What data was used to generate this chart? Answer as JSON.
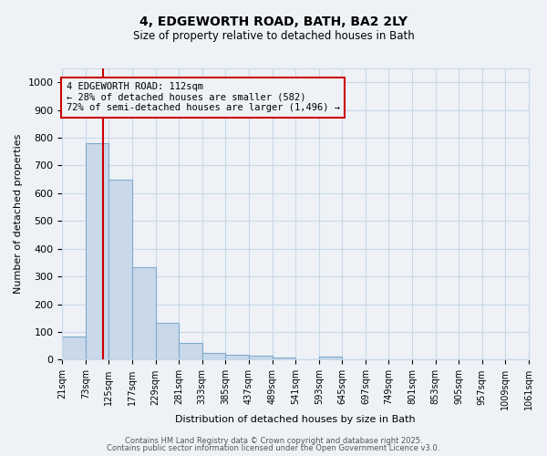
{
  "title": "4, EDGEWORTH ROAD, BATH, BA2 2LY",
  "subtitle": "Size of property relative to detached houses in Bath",
  "xlabel": "Distribution of detached houses by size in Bath",
  "ylabel": "Number of detached properties",
  "bin_edges": [
    21,
    73,
    125,
    177,
    229,
    281,
    333,
    385,
    437,
    489,
    541,
    593,
    645,
    697,
    749,
    801,
    853,
    905,
    957,
    1009,
    1061
  ],
  "bar_heights": [
    83,
    780,
    648,
    335,
    132,
    60,
    25,
    18,
    15,
    8,
    0,
    10,
    0,
    0,
    0,
    0,
    0,
    0,
    0,
    0
  ],
  "bar_color": "#c9d9ea",
  "bar_edge_color": "#7faacc",
  "red_line_x": 112,
  "ylim": [
    0,
    1050
  ],
  "yticks": [
    0,
    100,
    200,
    300,
    400,
    500,
    600,
    700,
    800,
    900,
    1000
  ],
  "annotation_title": "4 EDGEWORTH ROAD: 112sqm",
  "annotation_line2": "← 28% of detached houses are smaller (582)",
  "annotation_line3": "72% of semi-detached houses are larger (1,496) →",
  "annotation_box_color": "#cc0000",
  "footer1": "Contains HM Land Registry data © Crown copyright and database right 2025.",
  "footer2": "Contains public sector information licensed under the Open Government Licence v3.0.",
  "bg_color": "#eef2f7",
  "grid_color": "#c8d8e8"
}
